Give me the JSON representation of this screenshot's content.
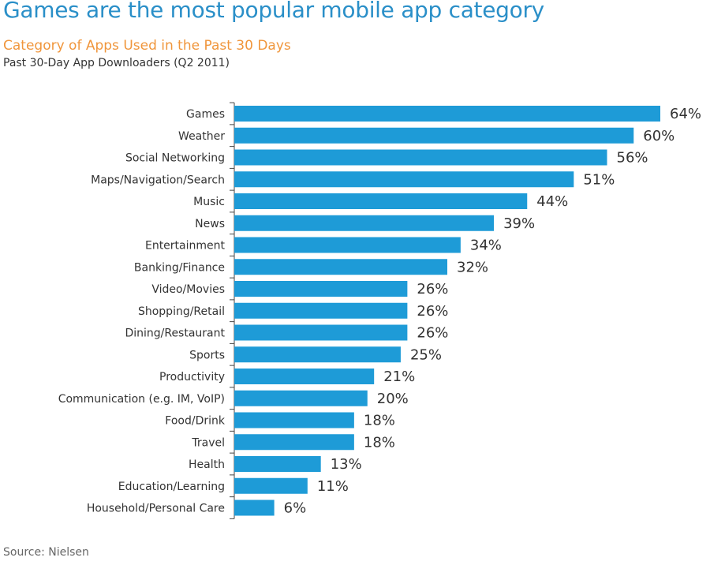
{
  "header": {
    "headline": "Games are the most popular mobile app category",
    "subtitle": "Category of Apps Used in the Past 30 Days",
    "subtitle2": "Past 30-Day App Downloaders  (Q2 2011)"
  },
  "footer": {
    "source": "Source: Nielsen"
  },
  "colors": {
    "headline": "#2a8fc8",
    "subtitle": "#f0963c",
    "bar": "#1e9bd7",
    "axis": "#444444"
  },
  "chart_data": {
    "type": "bar",
    "orientation": "horizontal",
    "title": "Category of Apps Used in the Past 30 Days",
    "categories": [
      "Games",
      "Weather",
      "Social Networking",
      "Maps/Navigation/Search",
      "Music",
      "News",
      "Entertainment",
      "Banking/Finance",
      "Video/Movies",
      "Shopping/Retail",
      "Dining/Restaurant",
      "Sports",
      "Productivity",
      "Communication (e.g. IM, VoIP)",
      "Food/Drink",
      "Travel",
      "Health",
      "Education/Learning",
      "Household/Personal Care"
    ],
    "values": [
      64,
      60,
      56,
      51,
      44,
      39,
      34,
      32,
      26,
      26,
      26,
      25,
      21,
      20,
      18,
      18,
      13,
      11,
      6
    ],
    "value_labels": [
      "64%",
      "60%",
      "56%",
      "51%",
      "44%",
      "39%",
      "34%",
      "32%",
      "26%",
      "26%",
      "26%",
      "25%",
      "21%",
      "20%",
      "18%",
      "18%",
      "13%",
      "11%",
      "6%"
    ],
    "unit": "%",
    "grid": false,
    "legend": "none"
  }
}
